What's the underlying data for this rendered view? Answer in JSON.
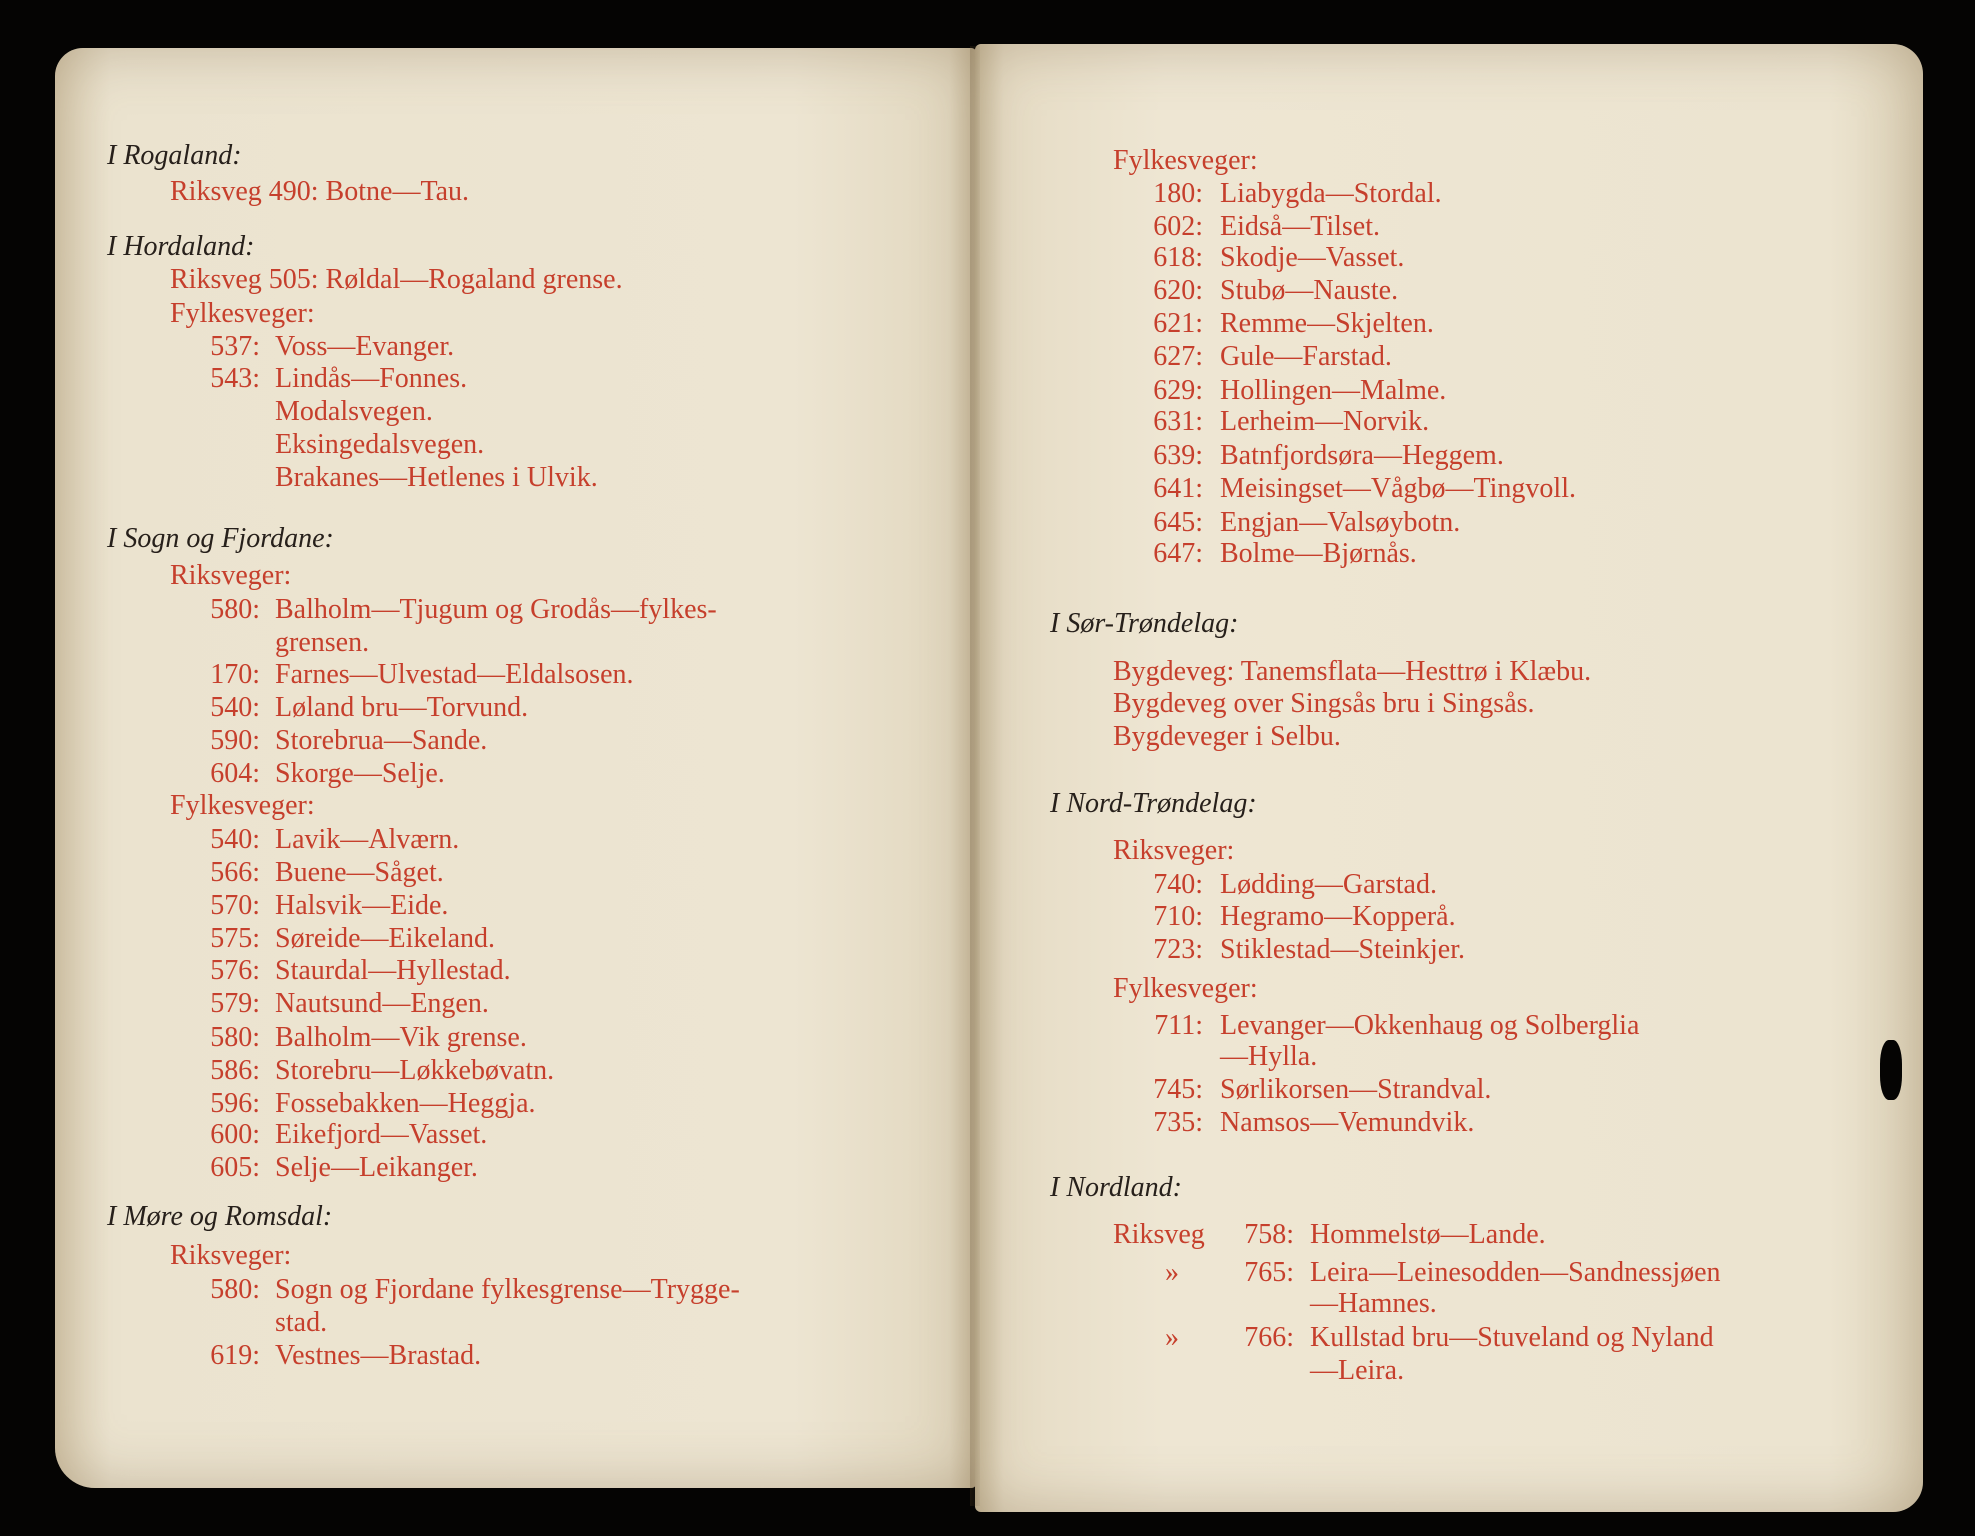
{
  "colors": {
    "paper": "#ebe2cd",
    "red_ink": "#c63f2c",
    "black_ink": "#27201b",
    "background": "#050403"
  },
  "pages": [
    {
      "sections": [
        {
          "heading": "I Rogaland:",
          "rows": [
            {
              "plain": "Riksveg 490: Botne—Tau."
            }
          ]
        },
        {
          "heading": "I Hordaland:",
          "rows": [
            {
              "plain": "Riksveg 505: Røldal—Rogaland grense."
            },
            {
              "label": "Fylkesveger:"
            },
            {
              "num": "537:",
              "text": "Voss—Evanger."
            },
            {
              "num": "543:",
              "text": "Lindås—Fonnes."
            },
            {
              "text": "Modalsvegen."
            },
            {
              "text": "Eksingedalsvegen."
            },
            {
              "text": "Brakanes—Hetlenes i Ulvik."
            }
          ]
        },
        {
          "heading": "I Sogn og Fjordane:",
          "rows": [
            {
              "label": "Riksveger:"
            },
            {
              "num": "580:",
              "text": "Balholm—Tjugum og Grodås—fylkes-"
            },
            {
              "text": "grensen."
            },
            {
              "num": "170:",
              "text": "Farnes—Ulvestad—Eldalsosen."
            },
            {
              "num": "540:",
              "text": "Løland bru—Torvund."
            },
            {
              "num": "590:",
              "text": "Storebrua—Sande."
            },
            {
              "num": "604:",
              "text": "Skorge—Selje."
            },
            {
              "label": "Fylkesveger:"
            },
            {
              "num": "540:",
              "text": "Lavik—Alværn."
            },
            {
              "num": "566:",
              "text": "Buene—Såget."
            },
            {
              "num": "570:",
              "text": "Halsvik—Eide."
            },
            {
              "num": "575:",
              "text": "Søreide—Eikeland."
            },
            {
              "num": "576:",
              "text": "Staurdal—Hyllestad."
            },
            {
              "num": "579:",
              "text": "Nautsund—Engen."
            },
            {
              "num": "580:",
              "text": "Balholm—Vik grense."
            },
            {
              "num": "586:",
              "text": "Storebru—Løkkebøvatn."
            },
            {
              "num": "596:",
              "text": "Fossebakken—Heggja."
            },
            {
              "num": "600:",
              "text": "Eikefjord—Vasset."
            },
            {
              "num": "605:",
              "text": "Selje—Leikanger."
            }
          ]
        },
        {
          "heading": "I Møre og Romsdal:",
          "rows": [
            {
              "label": "Riksveger:"
            },
            {
              "num": "580:",
              "text": "Sogn og Fjordane fylkesgrense—Trygge-"
            },
            {
              "text": "stad."
            },
            {
              "num": "619:",
              "text": "Vestnes—Brastad."
            }
          ]
        }
      ]
    },
    {
      "sections": [
        {
          "heading": "",
          "rows": [
            {
              "label": "Fylkesveger:"
            },
            {
              "num": "180:",
              "text": "Liabygda—Stordal."
            },
            {
              "num": "602:",
              "text": "Eidså—Tilset."
            },
            {
              "num": "618:",
              "text": "Skodje—Vasset."
            },
            {
              "num": "620:",
              "text": "Stubø—Nauste."
            },
            {
              "num": "621:",
              "text": "Remme—Skjelten."
            },
            {
              "num": "627:",
              "text": "Gule—Farstad."
            },
            {
              "num": "629:",
              "text": "Hollingen—Malme."
            },
            {
              "num": "631:",
              "text": "Lerheim—Norvik."
            },
            {
              "num": "639:",
              "text": "Batnfjordsøra—Heggem."
            },
            {
              "num": "641:",
              "text": "Meisingset—Vågbø—Tingvoll."
            },
            {
              "num": "645:",
              "text": "Engjan—Valsøybotn."
            },
            {
              "num": "647:",
              "text": "Bolme—Bjørnås."
            }
          ]
        },
        {
          "heading": "I Sør-Trøndelag:",
          "rows": [
            {
              "plain": "Bygdeveg: Tanemsflata—Hesttrø i Klæbu."
            },
            {
              "plain": "Bygdeveg over Singsås bru i Singsås."
            },
            {
              "plain": "Bygdeveger i Selbu."
            }
          ]
        },
        {
          "heading": "I Nord-Trøndelag:",
          "rows": [
            {
              "label": "Riksveger:"
            },
            {
              "num": "740:",
              "text": "Lødding—Garstad."
            },
            {
              "num": "710:",
              "text": "Hegramo—Kopperå."
            },
            {
              "num": "723:",
              "text": "Stiklestad—Steinkjer."
            },
            {
              "label": "Fylkesveger:"
            },
            {
              "num": "711:",
              "text": "Levanger—Okkenhaug og Solberglia"
            },
            {
              "text": "—Hylla."
            },
            {
              "num": "745:",
              "text": "Sørlikorsen—Strandval."
            },
            {
              "num": "735:",
              "text": "Namsos—Vemundvik."
            }
          ]
        },
        {
          "heading": "I Nordland:",
          "rows": [
            {
              "prefix": "Riksveg",
              "num": "758:",
              "text": "Hommelstø—Lande."
            },
            {
              "prefix": "»",
              "num": "765:",
              "text": "Leira—Leinesodden—Sandnessjøen"
            },
            {
              "text": "—Hamnes."
            },
            {
              "prefix": "»",
              "num": "766:",
              "text": "Kullstad bru—Stuveland og Nyland"
            },
            {
              "text": "—Leira."
            }
          ]
        }
      ]
    }
  ]
}
